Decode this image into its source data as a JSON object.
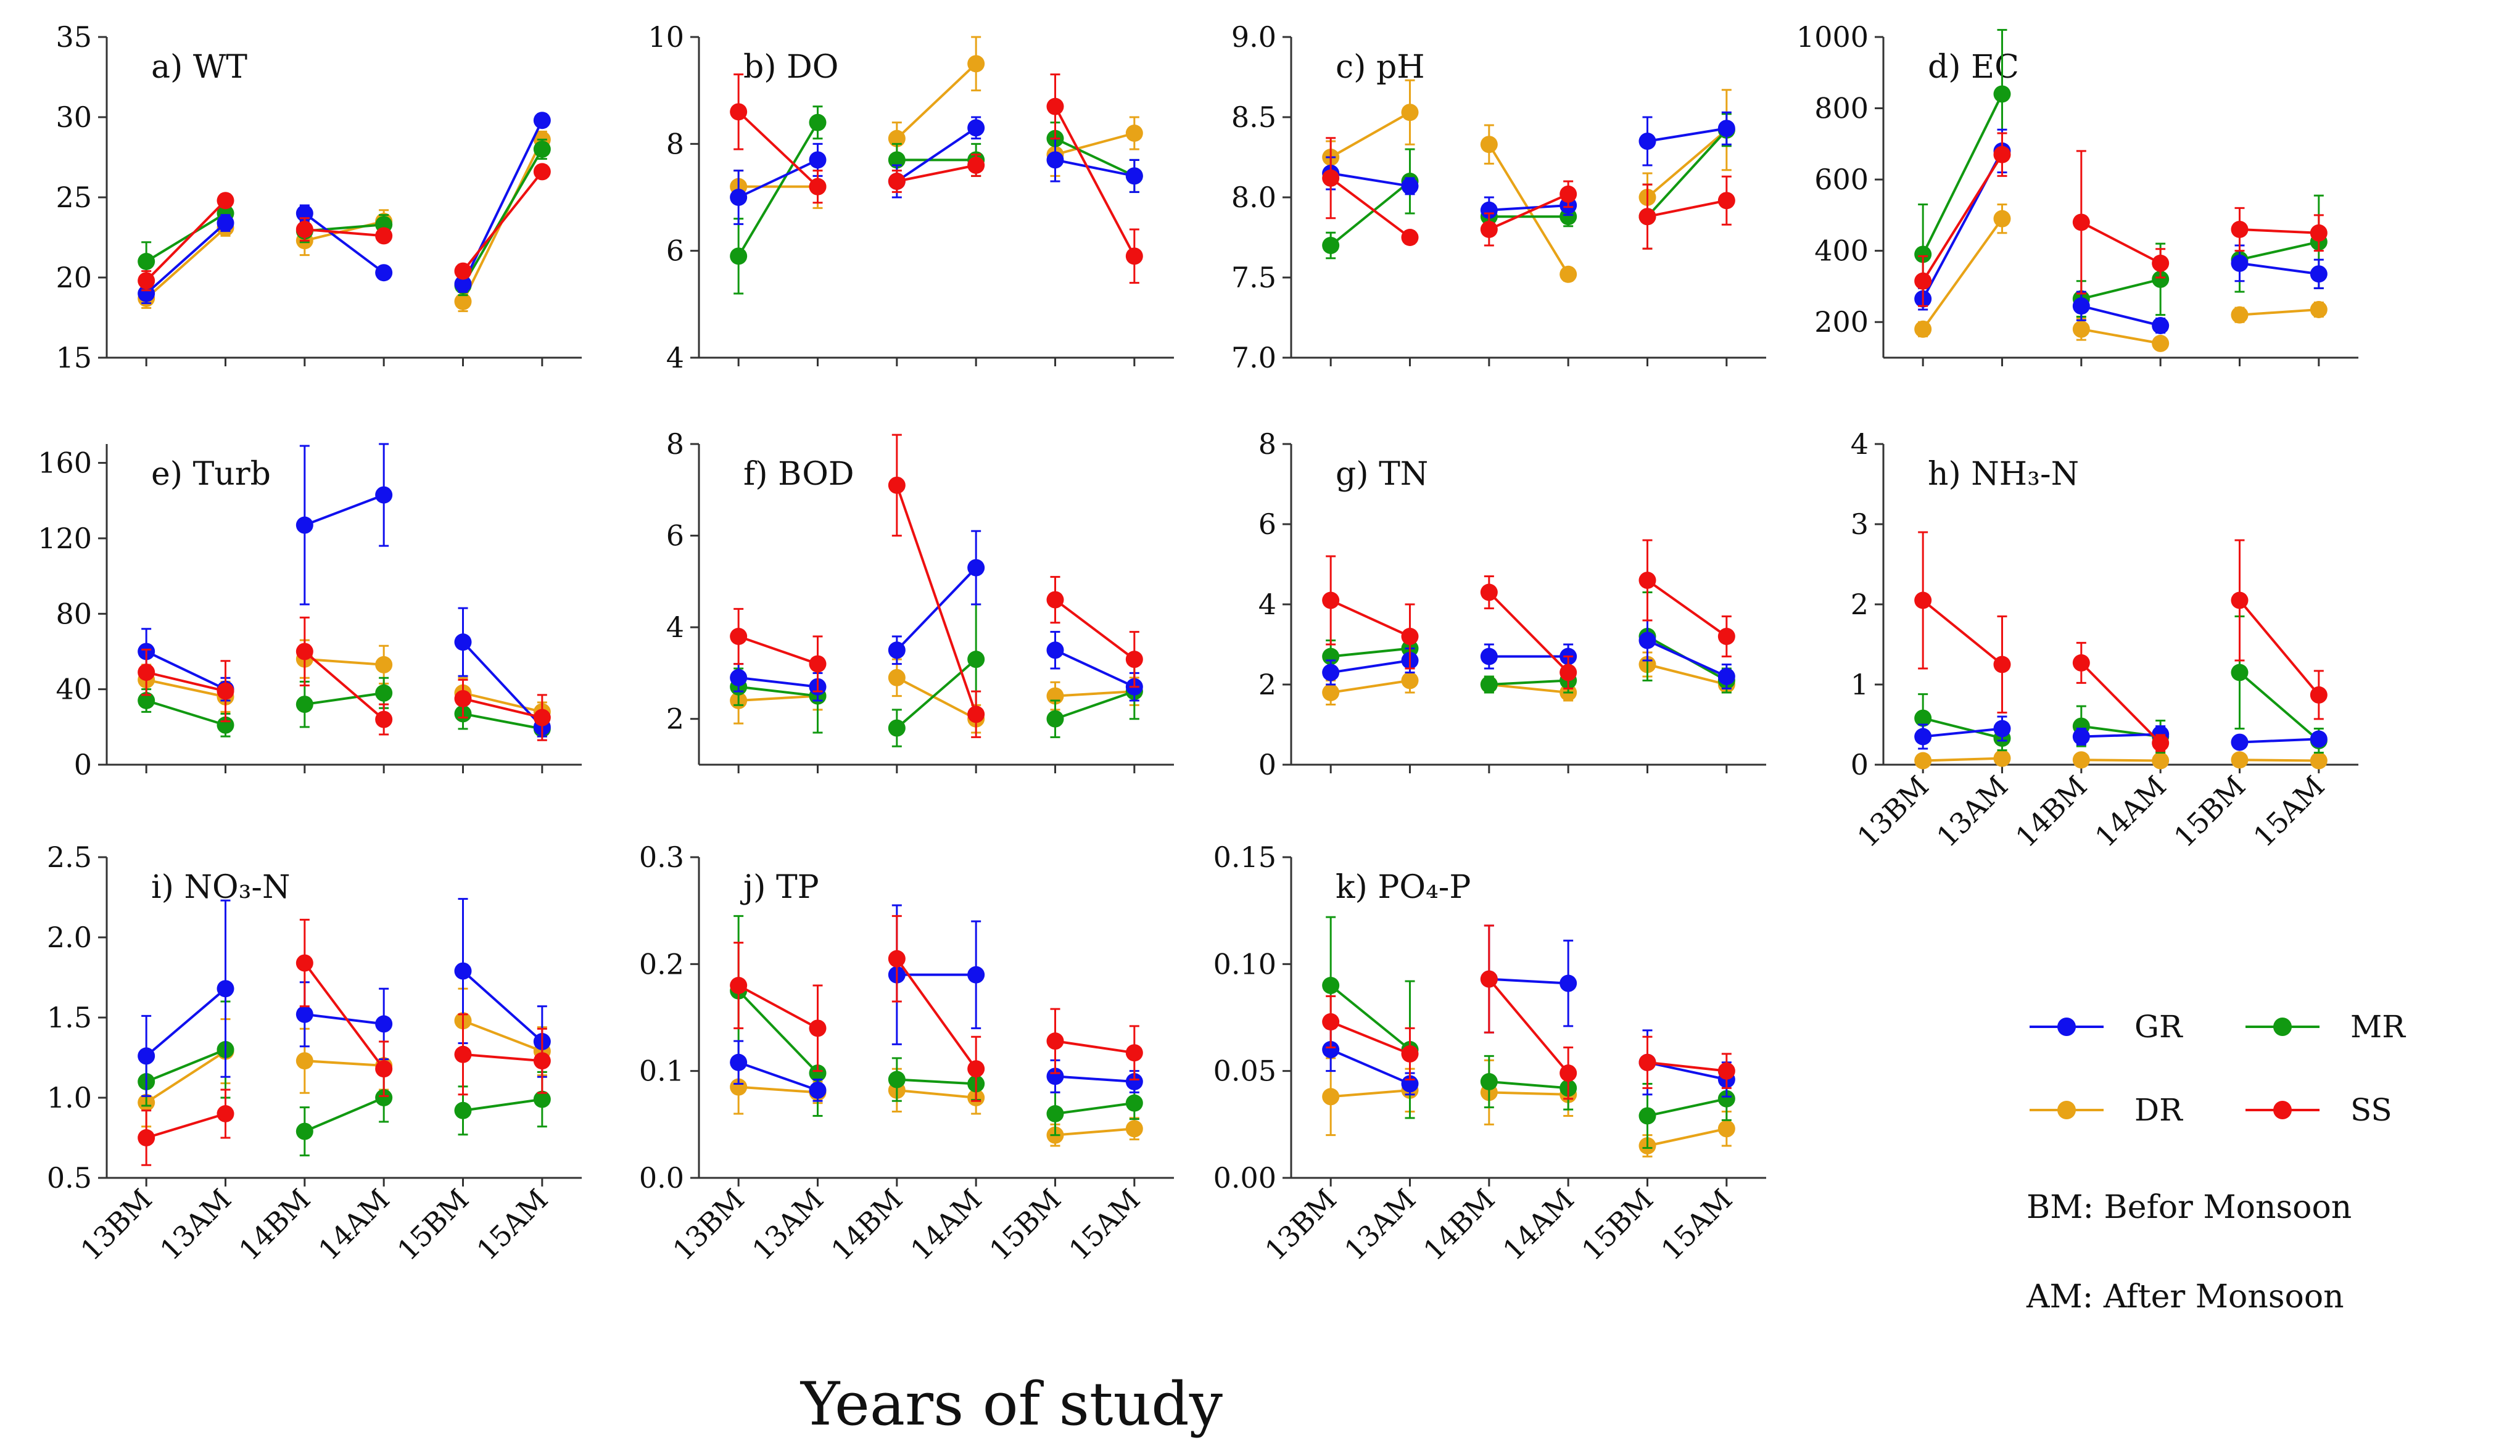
{
  "figure": {
    "xlabel": "Years of study",
    "x_categories": [
      "13BM",
      "13AM",
      "14BM",
      "14AM",
      "15BM",
      "15AM"
    ],
    "series_colors": {
      "GR": "#1010ee",
      "MR": "#119911",
      "DR": "#e8a317",
      "SS": "#ee1010"
    },
    "legend": [
      {
        "name": "GR",
        "color": "#1010ee"
      },
      {
        "name": "MR",
        "color": "#119911"
      },
      {
        "name": "DR",
        "color": "#e8a317"
      },
      {
        "name": "SS",
        "color": "#ee1010"
      }
    ],
    "notes": [
      "BM: Befor Monsoon",
      "AM: After Monsoon"
    ]
  },
  "chart_data": [
    {
      "type": "line",
      "panel": "a",
      "title": "a) WT",
      "ylim": [
        15,
        35
      ],
      "yticks": [
        "15",
        "20",
        "25",
        "30",
        "35"
      ],
      "yticks_values": [
        15,
        20,
        25,
        30,
        35
      ],
      "series": [
        {
          "name": "GR",
          "values": [
            19.0,
            23.4,
            24.0,
            20.3,
            19.6,
            29.8
          ],
          "err": [
            0.6,
            0.5,
            0.5,
            0.3,
            0.5,
            0.4
          ]
        },
        {
          "name": "MR",
          "values": [
            21.0,
            24.0,
            22.9,
            23.3,
            19.5,
            28.0
          ],
          "err": [
            1.2,
            0.6,
            0.7,
            0.6,
            0.6,
            0.6
          ]
        },
        {
          "name": "DR",
          "values": [
            18.7,
            23.1,
            22.3,
            23.5,
            18.5,
            28.6
          ],
          "err": [
            0.6,
            0.5,
            0.9,
            0.7,
            0.6,
            0.5
          ]
        },
        {
          "name": "SS",
          "values": [
            19.8,
            24.8,
            23.0,
            22.6,
            20.4,
            26.6
          ],
          "err": [
            0.6,
            0.4,
            0.7,
            0.4,
            0.4,
            0.4
          ]
        }
      ]
    },
    {
      "type": "line",
      "panel": "b",
      "title": "b) DO",
      "ylim": [
        4,
        10
      ],
      "yticks": [
        "4",
        "6",
        "8",
        "10"
      ],
      "yticks_values": [
        4,
        6,
        8,
        10
      ],
      "series": [
        {
          "name": "GR",
          "values": [
            7.0,
            7.7,
            7.3,
            8.3,
            7.7,
            7.4
          ],
          "err": [
            0.5,
            0.3,
            0.3,
            0.2,
            0.4,
            0.3
          ]
        },
        {
          "name": "MR",
          "values": [
            5.9,
            8.4,
            7.7,
            7.7,
            8.1,
            7.4
          ],
          "err": [
            0.7,
            0.3,
            0.3,
            0.3,
            0.3,
            0.3
          ]
        },
        {
          "name": "DR",
          "values": [
            7.2,
            7.2,
            8.1,
            9.5,
            7.8,
            8.2
          ],
          "err": [
            0.3,
            0.4,
            0.3,
            0.5,
            0.4,
            0.3
          ]
        },
        {
          "name": "SS",
          "values": [
            8.6,
            7.2,
            7.3,
            7.6,
            8.7,
            5.9
          ],
          "err": [
            0.7,
            0.3,
            0.2,
            0.2,
            0.6,
            0.5
          ]
        }
      ]
    },
    {
      "type": "line",
      "panel": "c",
      "title": "c) pH",
      "ylim": [
        7.0,
        9.0
      ],
      "yticks": [
        "7.0",
        "7.5",
        "8.0",
        "8.5",
        "9.0"
      ],
      "yticks_values": [
        7.0,
        7.5,
        8.0,
        8.5,
        9.0
      ],
      "series": [
        {
          "name": "GR",
          "values": [
            8.15,
            8.07,
            7.92,
            7.95,
            8.35,
            8.43
          ],
          "err": [
            0.1,
            0.05,
            0.08,
            0.06,
            0.15,
            0.1
          ]
        },
        {
          "name": "MR",
          "values": [
            7.7,
            8.1,
            7.88,
            7.88,
            7.88,
            8.42
          ],
          "err": [
            0.08,
            0.2,
            0.08,
            0.06,
            0.2,
            0.1
          ]
        },
        {
          "name": "DR",
          "values": [
            8.25,
            8.53,
            8.33,
            7.52,
            8.0,
            8.42
          ],
          "err": [
            0.1,
            0.2,
            0.12,
            0.04,
            0.15,
            0.25
          ]
        },
        {
          "name": "SS",
          "values": [
            8.12,
            7.75,
            7.8,
            8.02,
            7.88,
            7.98
          ],
          "err": [
            0.25,
            0.04,
            0.1,
            0.08,
            0.2,
            0.15
          ]
        }
      ]
    },
    {
      "type": "line",
      "panel": "d",
      "title": "d) EC",
      "ylim": [
        100,
        1000
      ],
      "yticks": [
        "200",
        "400",
        "600",
        "800",
        "1000"
      ],
      "yticks_values": [
        200,
        400,
        600,
        800,
        1000
      ],
      "series": [
        {
          "name": "GR",
          "values": [
            265,
            680,
            245,
            190,
            365,
            335
          ],
          "err": [
            30,
            60,
            40,
            20,
            50,
            40
          ]
        },
        {
          "name": "MR",
          "values": [
            390,
            840,
            265,
            320,
            375,
            425
          ],
          "err": [
            140,
            180,
            50,
            100,
            90,
            130
          ]
        },
        {
          "name": "DR",
          "values": [
            180,
            490,
            180,
            140,
            220,
            235
          ],
          "err": [
            20,
            40,
            30,
            15,
            20,
            20
          ]
        },
        {
          "name": "SS",
          "values": [
            315,
            670,
            480,
            365,
            460,
            450
          ],
          "err": [
            70,
            60,
            200,
            40,
            60,
            50
          ]
        }
      ]
    },
    {
      "type": "line",
      "panel": "e",
      "title": "e) Turb",
      "ylim": [
        0,
        170
      ],
      "yticks": [
        "0",
        "40",
        "80",
        "120",
        "160"
      ],
      "yticks_values": [
        0,
        40,
        80,
        120,
        160
      ],
      "series": [
        {
          "name": "GR",
          "values": [
            60,
            40,
            127,
            143,
            65,
            20
          ],
          "err": [
            12,
            6,
            42,
            27,
            18,
            5
          ]
        },
        {
          "name": "MR",
          "values": [
            34,
            21,
            32,
            38,
            27,
            19
          ],
          "err": [
            6,
            6,
            12,
            8,
            8,
            4
          ]
        },
        {
          "name": "DR",
          "values": [
            45,
            36,
            56,
            53,
            38,
            28
          ],
          "err": [
            8,
            8,
            10,
            10,
            8,
            5
          ]
        },
        {
          "name": "SS",
          "values": [
            49,
            39,
            60,
            24,
            35,
            25
          ],
          "err": [
            12,
            16,
            18,
            8,
            10,
            12
          ]
        }
      ]
    },
    {
      "type": "line",
      "panel": "f",
      "title": "f) BOD",
      "ylim": [
        1,
        8
      ],
      "yticks": [
        "2",
        "4",
        "6",
        "8"
      ],
      "yticks_values": [
        2,
        4,
        6,
        8
      ],
      "series": [
        {
          "name": "GR",
          "values": [
            2.9,
            2.7,
            3.5,
            5.3,
            3.5,
            2.7
          ],
          "err": [
            0.3,
            0.3,
            0.3,
            0.8,
            0.4,
            0.3
          ]
        },
        {
          "name": "MR",
          "values": [
            2.7,
            2.5,
            1.8,
            3.3,
            2.0,
            2.6
          ],
          "err": [
            0.4,
            0.8,
            0.4,
            1.2,
            0.4,
            0.6
          ]
        },
        {
          "name": "DR",
          "values": [
            2.4,
            2.5,
            2.9,
            2.0,
            2.5,
            2.6
          ],
          "err": [
            0.5,
            0.3,
            0.4,
            0.3,
            0.3,
            0.3
          ]
        },
        {
          "name": "SS",
          "values": [
            3.8,
            3.2,
            7.1,
            2.1,
            4.6,
            3.3
          ],
          "err": [
            0.6,
            0.6,
            1.1,
            0.5,
            0.5,
            0.6
          ]
        }
      ]
    },
    {
      "type": "line",
      "panel": "g",
      "title": "g) TN",
      "ylim": [
        0,
        8
      ],
      "yticks": [
        "0",
        "2",
        "4",
        "6",
        "8"
      ],
      "yticks_values": [
        0,
        2,
        4,
        6,
        8
      ],
      "series": [
        {
          "name": "GR",
          "values": [
            2.3,
            2.6,
            2.7,
            2.7,
            3.1,
            2.2
          ],
          "err": [
            0.3,
            0.3,
            0.3,
            0.3,
            0.5,
            0.3
          ]
        },
        {
          "name": "MR",
          "values": [
            2.7,
            2.9,
            2.0,
            2.1,
            3.2,
            2.1
          ],
          "err": [
            0.4,
            0.4,
            0.2,
            0.3,
            1.1,
            0.3
          ]
        },
        {
          "name": "DR",
          "values": [
            1.8,
            2.1,
            2.0,
            1.8,
            2.5,
            2.0
          ],
          "err": [
            0.3,
            0.3,
            0.2,
            0.2,
            0.3,
            0.2
          ]
        },
        {
          "name": "SS",
          "values": [
            4.1,
            3.2,
            4.3,
            2.3,
            4.6,
            3.2
          ],
          "err": [
            1.1,
            0.8,
            0.4,
            0.4,
            1.0,
            0.5
          ]
        }
      ]
    },
    {
      "type": "line",
      "panel": "h",
      "title": "h) NH₃-N",
      "ylim": [
        0,
        4
      ],
      "yticks": [
        "0",
        "1",
        "2",
        "3",
        "4"
      ],
      "yticks_values": [
        0,
        1,
        2,
        3,
        4
      ],
      "series": [
        {
          "name": "GR",
          "values": [
            0.35,
            0.45,
            0.35,
            0.38,
            0.28,
            0.32
          ],
          "err": [
            0.15,
            0.15,
            0.1,
            0.1,
            0.05,
            0.05
          ]
        },
        {
          "name": "MR",
          "values": [
            0.58,
            0.33,
            0.48,
            0.35,
            1.15,
            0.3
          ],
          "err": [
            0.3,
            0.15,
            0.25,
            0.2,
            0.7,
            0.15
          ]
        },
        {
          "name": "DR",
          "values": [
            0.05,
            0.08,
            0.06,
            0.05,
            0.06,
            0.05
          ],
          "err": [
            0.03,
            0.03,
            0.02,
            0.02,
            0.02,
            0.02
          ]
        },
        {
          "name": "SS",
          "values": [
            2.05,
            1.25,
            1.27,
            0.27,
            2.05,
            0.87
          ],
          "err": [
            0.85,
            0.6,
            0.25,
            0.1,
            0.75,
            0.3
          ]
        }
      ]
    },
    {
      "type": "line",
      "panel": "i",
      "title": "i) NO₃-N",
      "ylim": [
        0.5,
        2.5
      ],
      "yticks": [
        "0.5",
        "1.0",
        "1.5",
        "2.0",
        "2.5"
      ],
      "yticks_values": [
        0.5,
        1.0,
        1.5,
        2.0,
        2.5
      ],
      "series": [
        {
          "name": "GR",
          "values": [
            1.26,
            1.68,
            1.52,
            1.46,
            1.79,
            1.35
          ],
          "err": [
            0.25,
            0.55,
            0.2,
            0.22,
            0.45,
            0.22
          ]
        },
        {
          "name": "MR",
          "values": [
            1.1,
            1.3,
            0.79,
            1.0,
            0.92,
            0.99
          ],
          "err": [
            0.15,
            0.3,
            0.15,
            0.15,
            0.15,
            0.17
          ]
        },
        {
          "name": "DR",
          "values": [
            0.97,
            1.29,
            1.23,
            1.2,
            1.48,
            1.29
          ],
          "err": [
            0.15,
            0.2,
            0.2,
            0.15,
            0.2,
            0.15
          ]
        },
        {
          "name": "SS",
          "values": [
            0.75,
            0.9,
            1.84,
            1.18,
            1.27,
            1.23
          ],
          "err": [
            0.17,
            0.15,
            0.27,
            0.17,
            0.25,
            0.2
          ]
        }
      ]
    },
    {
      "type": "line",
      "panel": "j",
      "title": "j) TP",
      "ylim": [
        0,
        0.3
      ],
      "yticks": [
        "0.0",
        "0.1",
        "0.2",
        "0.3"
      ],
      "yticks_values": [
        0,
        0.1,
        0.2,
        0.3
      ],
      "series": [
        {
          "name": "GR",
          "values": [
            0.108,
            0.082,
            0.19,
            0.19,
            0.095,
            0.09
          ],
          "err": [
            0.02,
            0.01,
            0.065,
            0.05,
            0.015,
            0.01
          ]
        },
        {
          "name": "MR",
          "values": [
            0.175,
            0.098,
            0.092,
            0.088,
            0.06,
            0.07
          ],
          "err": [
            0.07,
            0.04,
            0.02,
            0.015,
            0.02,
            0.015
          ]
        },
        {
          "name": "DR",
          "values": [
            0.085,
            0.08,
            0.082,
            0.075,
            0.04,
            0.046
          ],
          "err": [
            0.025,
            0.01,
            0.02,
            0.015,
            0.01,
            0.01
          ]
        },
        {
          "name": "SS",
          "values": [
            0.18,
            0.14,
            0.205,
            0.102,
            0.128,
            0.117
          ],
          "err": [
            0.04,
            0.04,
            0.04,
            0.03,
            0.03,
            0.025
          ]
        }
      ]
    },
    {
      "type": "line",
      "panel": "k",
      "title": "k) PO₄-P",
      "ylim": [
        0,
        0.15
      ],
      "yticks": [
        "0.00",
        "0.05",
        "0.10",
        "0.15"
      ],
      "yticks_values": [
        0,
        0.05,
        0.1,
        0.15
      ],
      "series": [
        {
          "name": "GR",
          "values": [
            0.06,
            0.044,
            0.093,
            0.091,
            0.054,
            0.046
          ],
          "err": [
            0.01,
            0.005,
            0.025,
            0.02,
            0.015,
            0.008
          ]
        },
        {
          "name": "MR",
          "values": [
            0.09,
            0.06,
            0.045,
            0.042,
            0.029,
            0.037
          ],
          "err": [
            0.032,
            0.032,
            0.012,
            0.01,
            0.015,
            0.01
          ]
        },
        {
          "name": "DR",
          "values": [
            0.038,
            0.041,
            0.04,
            0.039,
            0.015,
            0.023
          ],
          "err": [
            0.018,
            0.01,
            0.015,
            0.01,
            0.005,
            0.008
          ]
        },
        {
          "name": "SS",
          "values": [
            0.073,
            0.058,
            0.093,
            0.049,
            0.054,
            0.05
          ],
          "err": [
            0.012,
            0.012,
            0.025,
            0.012,
            0.012,
            0.008
          ]
        }
      ]
    }
  ]
}
